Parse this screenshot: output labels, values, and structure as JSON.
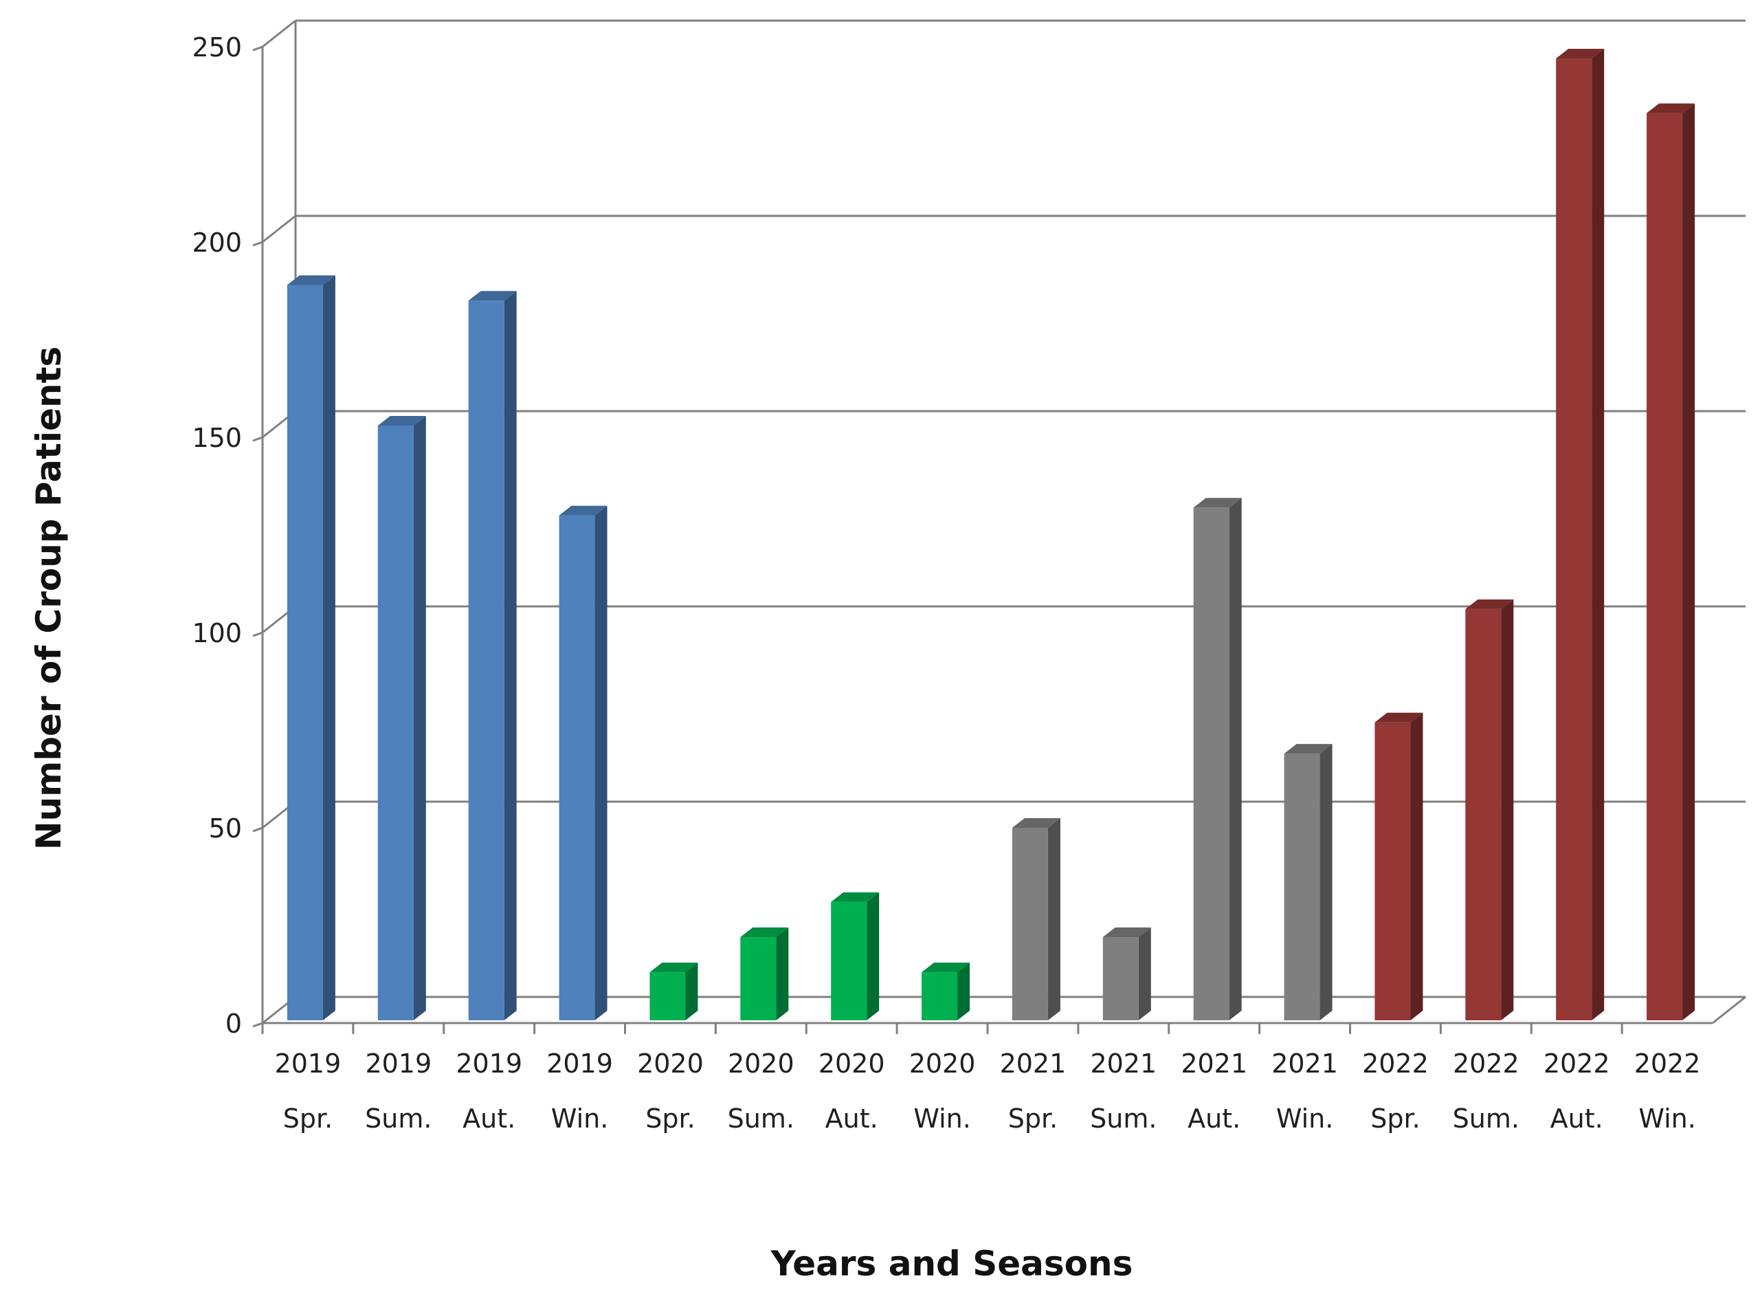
{
  "chart_data": {
    "type": "bar",
    "xlabel": "Years and Seasons",
    "ylabel": "Number of Croup Patients",
    "ylim": [
      0,
      250
    ],
    "yticks": [
      0,
      50,
      100,
      150,
      200,
      250
    ],
    "grid": true,
    "legend": "none",
    "categories": [
      {
        "year": "2019",
        "season": "Spr."
      },
      {
        "year": "2019",
        "season": "Sum."
      },
      {
        "year": "2019",
        "season": "Aut."
      },
      {
        "year": "2019",
        "season": "Win."
      },
      {
        "year": "2020",
        "season": "Spr."
      },
      {
        "year": "2020",
        "season": "Sum."
      },
      {
        "year": "2020",
        "season": "Aut."
      },
      {
        "year": "2020",
        "season": "Win."
      },
      {
        "year": "2021",
        "season": "Spr."
      },
      {
        "year": "2021",
        "season": "Sum."
      },
      {
        "year": "2021",
        "season": "Aut."
      },
      {
        "year": "2021",
        "season": "Win."
      },
      {
        "year": "2022",
        "season": "Spr."
      },
      {
        "year": "2022",
        "season": "Sum."
      },
      {
        "year": "2022",
        "season": "Aut."
      },
      {
        "year": "2022",
        "season": "Win."
      }
    ],
    "values": [
      189,
      153,
      185,
      130,
      13,
      22,
      31,
      13,
      50,
      22,
      132,
      69,
      77,
      106,
      247,
      233
    ],
    "bar_colors": [
      "#4f81bd",
      "#4f81bd",
      "#4f81bd",
      "#4f81bd",
      "#00b050",
      "#00b050",
      "#00b050",
      "#00b050",
      "#7f7f7f",
      "#7f7f7f",
      "#7f7f7f",
      "#7f7f7f",
      "#953735",
      "#953735",
      "#953735",
      "#953735"
    ],
    "grid_color": "#808080",
    "axis_color": "#808080"
  }
}
